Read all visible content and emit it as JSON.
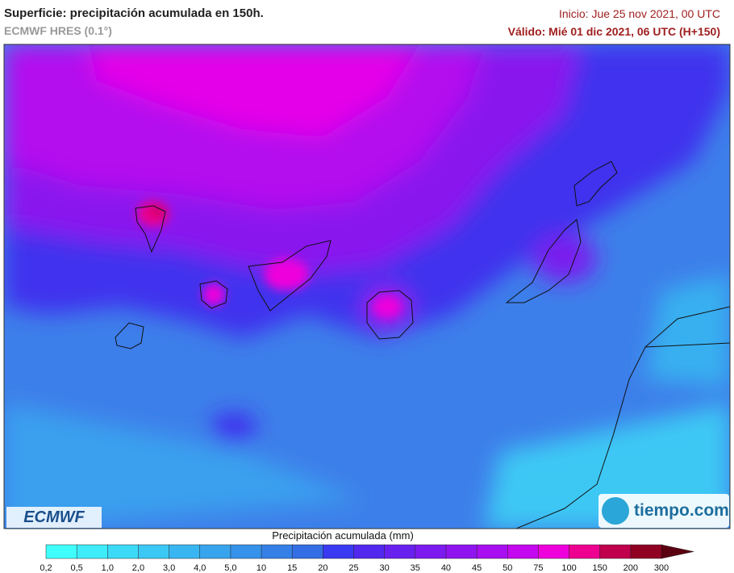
{
  "header": {
    "title": "Superficie: precipitación acumulada en 150h.",
    "subtitle": "ECMWF HRES (0.1°)",
    "init": "Inicio: Jue 25 nov 2021, 00 UTC",
    "valid": "Válido: Mié 01 dic 2021, 06 UTC (H+150)"
  },
  "logos": {
    "left": "ECMWF",
    "right": "tiempo.com"
  },
  "legend": {
    "title": "Precipitación acumulada (mm)",
    "labels": [
      "0,2",
      "0,5",
      "1,0",
      "2,0",
      "3,0",
      "4,0",
      "5,0",
      "10",
      "15",
      "20",
      "25",
      "30",
      "35",
      "40",
      "45",
      "50",
      "75",
      "100",
      "150",
      "200",
      "300"
    ],
    "colors": [
      "#40ffff",
      "#3eecfb",
      "#3cdaf7",
      "#3bc8f4",
      "#39b6f1",
      "#38a4ed",
      "#3692ea",
      "#3580e7",
      "#346ee4",
      "#3a3af2",
      "#5228ef",
      "#6820ef",
      "#7c1aef",
      "#9014ef",
      "#a80eef",
      "#c408ef",
      "#ee00dc",
      "#ee0090",
      "#c0004c",
      "#900022"
    ],
    "overflow_color": "#5a0010"
  }
}
